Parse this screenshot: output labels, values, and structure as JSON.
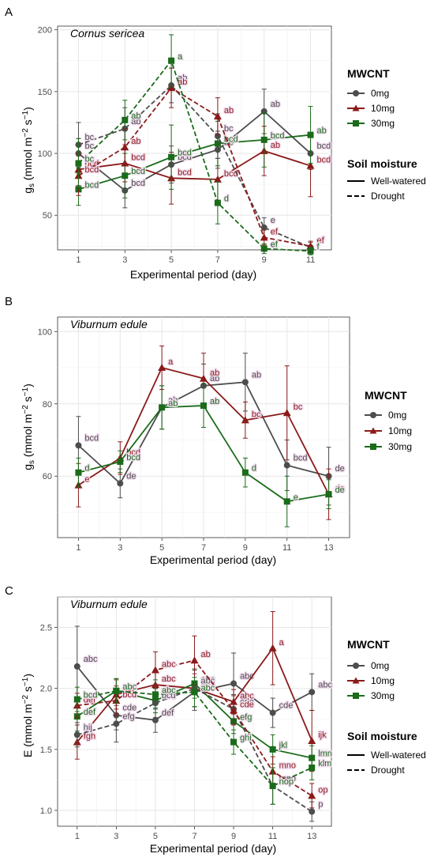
{
  "colors": {
    "0mg": "#4d4d4d",
    "10mg": "#8b1a1a",
    "30mg": "#1a6b1a"
  },
  "panel_labels": [
    "A",
    "B",
    "C"
  ],
  "x_axis_title": "Experimental period (day)",
  "legend": {
    "mwcnt_title": "MWCNT",
    "mwcnt_items": [
      "0mg",
      "10mg",
      "30mg"
    ],
    "moisture_title": "Soil moisture",
    "moisture_items": [
      "Well-watered",
      "Drought"
    ]
  },
  "chart_data": [
    {
      "type": "line",
      "panel": "A",
      "title": "Cornus sericea",
      "ylabel": "gs (mmol m-2 s-1)",
      "xlabel": "Experimental period (day)",
      "x": [
        1,
        3,
        5,
        7,
        9,
        11
      ],
      "xlim": [
        0.1,
        11.9
      ],
      "ylim": [
        22,
        203
      ],
      "yticks": [
        50,
        100,
        150,
        200
      ],
      "grid": true,
      "legend_position": "right",
      "series": [
        {
          "name": "0mg",
          "moisture": "Well-watered",
          "values": [
            100,
            70,
            91,
            103,
            134,
            100
          ],
          "err": [
            12,
            14,
            15,
            15,
            18,
            13
          ],
          "labels": [
            "bc",
            "bcd",
            "bcd",
            "bc",
            "ab",
            "bcd"
          ]
        },
        {
          "name": "10mg",
          "moisture": "Well-watered",
          "values": [
            87,
            92,
            80,
            79,
            102,
            90
          ],
          "err": [
            13,
            15,
            21,
            17,
            20,
            25
          ],
          "labels": [
            "bcd",
            "bcd",
            "bcd",
            "bcd",
            "ab",
            "bcd"
          ]
        },
        {
          "name": "30mg",
          "moisture": "Well-watered",
          "values": [
            71,
            82,
            97,
            108,
            111,
            115
          ],
          "err": [
            13,
            18,
            26,
            18,
            22,
            23
          ],
          "labels": [
            "bcd",
            "bcd",
            "bcd",
            "bcd",
            "bcd",
            "ab"
          ]
        },
        {
          "name": "0mg",
          "moisture": "Drought",
          "values": [
            107,
            120,
            155,
            114,
            40,
            24
          ],
          "err": [
            18,
            17,
            14,
            18,
            8,
            4
          ],
          "labels": [
            "bc",
            "ab",
            "ab",
            "bc",
            "e",
            "ef"
          ]
        },
        {
          "name": "10mg",
          "moisture": "Drought",
          "values": [
            82,
            105,
            153,
            130,
            32,
            25
          ],
          "err": [
            16,
            15,
            16,
            15,
            6,
            4
          ],
          "labels": [
            "bcd",
            "ab",
            "ab",
            "ab",
            "ef",
            "ef"
          ]
        },
        {
          "name": "30mg",
          "moisture": "Drought",
          "values": [
            92,
            127,
            175,
            60,
            23,
            21
          ],
          "err": [
            20,
            16,
            21,
            17,
            4,
            3
          ],
          "labels": [
            "bc",
            "ab",
            "a",
            "d",
            "ef",
            "f"
          ]
        }
      ]
    },
    {
      "type": "line",
      "panel": "B",
      "title": "Viburnum edule",
      "ylabel": "gs (mmol m-2 s-1)",
      "xlabel": "Experimental period (day)",
      "x": [
        1,
        3,
        5,
        7,
        9,
        11,
        13
      ],
      "xlim": [
        0,
        14
      ],
      "ylim": [
        43,
        104
      ],
      "yticks": [
        60,
        80,
        100
      ],
      "grid": true,
      "legend_position": "right",
      "series": [
        {
          "name": "0mg",
          "values": [
            68.5,
            58,
            79,
            85,
            86,
            63,
            60
          ],
          "err": [
            8,
            4,
            6,
            6,
            8,
            7,
            8
          ],
          "labels": [
            "bcd",
            "de",
            "ab",
            "ab",
            "ab",
            "bcd",
            "de"
          ]
        },
        {
          "name": "10mg",
          "values": [
            57.5,
            65,
            90,
            87,
            75.5,
            77.5,
            55
          ],
          "err": [
            6,
            4.5,
            6,
            7,
            5,
            13,
            7
          ],
          "labels": [
            "e",
            "bcd",
            "a",
            "ab",
            "bc",
            "bc",
            "de"
          ]
        },
        {
          "name": "30mg",
          "values": [
            61,
            64,
            79,
            79.5,
            61,
            53,
            55
          ],
          "err": [
            4,
            3,
            6,
            6,
            4,
            7,
            4
          ],
          "labels": [
            "d",
            "bcd",
            "ab",
            "ab",
            "d",
            "e",
            "de"
          ]
        }
      ]
    },
    {
      "type": "line",
      "panel": "C",
      "title": "Viburnum edule",
      "ylabel": "E (mmol m-2 s-1)",
      "xlabel": "Experimental period (day)",
      "x": [
        1,
        3,
        5,
        7,
        9,
        11,
        13
      ],
      "xlim": [
        0,
        14
      ],
      "ylim": [
        0.87,
        2.75
      ],
      "yticks": [
        1.0,
        1.5,
        2.0,
        2.5
      ],
      "grid": true,
      "legend_position": "right",
      "series": [
        {
          "name": "0mg",
          "moisture": "Well-watered",
          "values": [
            2.18,
            1.78,
            1.74,
            1.97,
            2.04,
            1.8,
            1.97
          ],
          "err": [
            0.33,
            0.12,
            0.1,
            0.15,
            0.25,
            0.12,
            0.15
          ],
          "labels": [
            "abc",
            "cde",
            "def",
            "abc",
            "abc",
            "cde",
            "abc"
          ]
        },
        {
          "name": "10mg",
          "moisture": "Well-watered",
          "values": [
            1.56,
            1.95,
            2.03,
            2.0,
            1.89,
            2.33,
            1.57
          ],
          "err": [
            0.14,
            0.12,
            0.12,
            0.15,
            0.1,
            0.3,
            0.25
          ],
          "labels": [
            "fgh",
            "bcd",
            "abc",
            "abc",
            "abc",
            "a",
            "ijk"
          ]
        },
        {
          "name": "30mg",
          "moisture": "Well-watered",
          "values": [
            1.77,
            1.98,
            1.9,
            2.04,
            1.73,
            1.5,
            1.43
          ],
          "err": [
            0.12,
            0.1,
            0.1,
            0.12,
            0.1,
            0.12,
            0.1
          ],
          "labels": [
            "def",
            "abc",
            "bcd",
            "abc",
            "efg",
            "jkl",
            "lmn"
          ]
        },
        {
          "name": "0mg",
          "moisture": "Drought",
          "values": [
            1.62,
            1.71,
            1.88,
            2.0,
            1.83,
            1.2,
            0.99
          ],
          "err": [
            0.1,
            0.15,
            0.12,
            0.15,
            0.12,
            0.15,
            0.08
          ],
          "labels": [
            "hij",
            "efg",
            "bcd",
            "abc",
            "cde",
            "mno",
            "p"
          ]
        },
        {
          "name": "10mg",
          "moisture": "Drought",
          "values": [
            1.86,
            1.9,
            2.15,
            2.23,
            1.82,
            1.32,
            1.12
          ],
          "err": [
            0.1,
            0.12,
            0.15,
            0.2,
            0.12,
            0.12,
            0.1
          ],
          "labels": [
            "def",
            "bcd",
            "abc",
            "ab",
            "cde",
            "mno",
            "op"
          ]
        },
        {
          "name": "30mg",
          "moisture": "Drought",
          "values": [
            1.91,
            1.98,
            1.95,
            1.97,
            1.56,
            1.2,
            1.35
          ],
          "err": [
            0.1,
            0.1,
            0.12,
            0.12,
            0.1,
            0.15,
            0.1
          ],
          "labels": [
            "bcd",
            "abc",
            "abc",
            "abc",
            "ghi",
            "nop",
            "klm"
          ]
        }
      ]
    }
  ]
}
